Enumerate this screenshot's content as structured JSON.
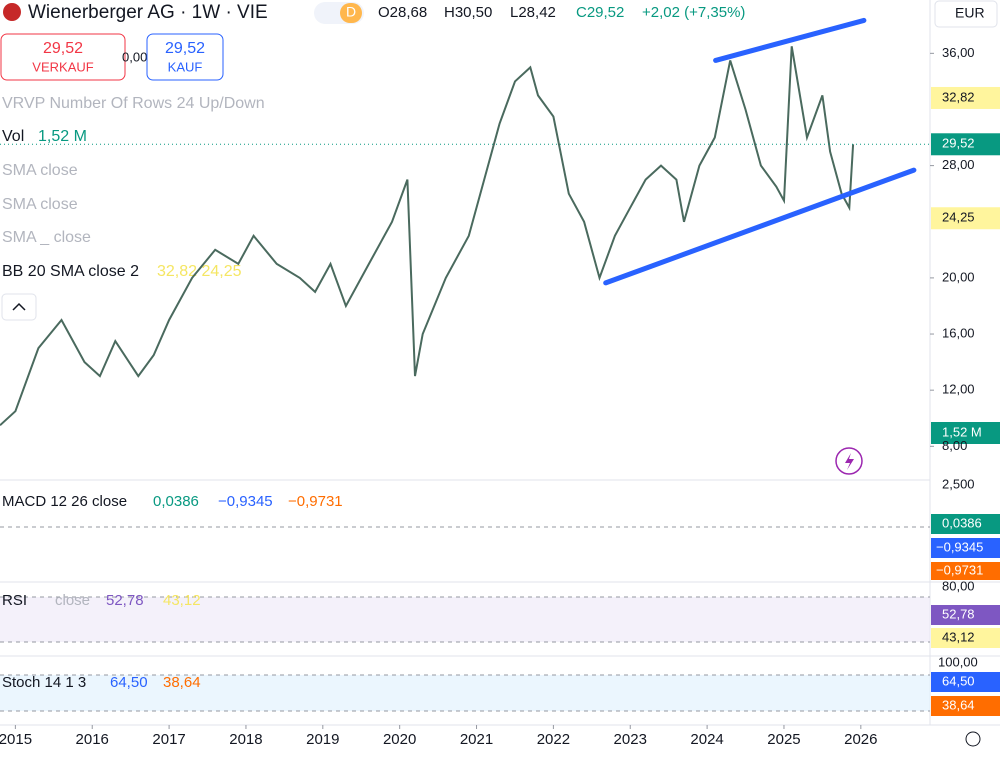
{
  "header": {
    "title": "Wienerberger AG · 1W · VIE",
    "badge": "D",
    "open": "O28,68",
    "high": "H30,50",
    "low": "L28,42",
    "close": "C29,52",
    "change": "+2,02 (+7,35%)",
    "currency": "EUR"
  },
  "trade": {
    "sell_price": "29,52",
    "sell_label": "VERKAUF",
    "spread": "0,00",
    "buy_price": "29,52",
    "buy_label": "KAUF"
  },
  "legend": {
    "vrvp": "VRVP Number Of Rows 24 Up/Down",
    "vol_name": "Vol",
    "vol_value": "1,52 M",
    "sma": [
      "SMA  close",
      "SMA   close",
      "SMA  _ close"
    ],
    "bb": "BB 20 SMA close 2",
    "bb_values": "32,82  24,25"
  },
  "price_chart": {
    "type": "line",
    "x": [
      2014.8,
      2015.0,
      2015.3,
      2015.6,
      2015.9,
      2016.1,
      2016.3,
      2016.6,
      2016.8,
      2017.0,
      2017.3,
      2017.6,
      2017.9,
      2018.1,
      2018.4,
      2018.7,
      2018.9,
      2019.1,
      2019.3,
      2019.6,
      2019.9,
      2020.1,
      2020.2,
      2020.3,
      2020.6,
      2020.9,
      2021.1,
      2021.3,
      2021.5,
      2021.7,
      2021.8,
      2022.0,
      2022.2,
      2022.4,
      2022.6,
      2022.8,
      2023.0,
      2023.2,
      2023.4,
      2023.6,
      2023.7,
      2023.9,
      2024.1,
      2024.3,
      2024.5,
      2024.7,
      2024.9,
      2025.0,
      2025.1,
      2025.3,
      2025.5,
      2025.6,
      2025.75,
      2025.85,
      2025.9
    ],
    "values": [
      9.5,
      10.5,
      15,
      17,
      14,
      13,
      15.5,
      13,
      14.5,
      17,
      20,
      22,
      21,
      23,
      21,
      20,
      19,
      21,
      18,
      21,
      24,
      27,
      13,
      16,
      20,
      23,
      27,
      31,
      34,
      35,
      33,
      31.5,
      26,
      24,
      20,
      23,
      25,
      27,
      28,
      27,
      24,
      28,
      30,
      35.5,
      32,
      28,
      26.5,
      25.5,
      36.5,
      30,
      33,
      29,
      26,
      25,
      29.52
    ],
    "color": "#4a6a5e",
    "xlim": [
      2014.8,
      2026.9
    ],
    "ylim": [
      5.6,
      39.8
    ],
    "xticks": [
      2015,
      2016,
      2017,
      2018,
      2019,
      2020,
      2021,
      2022,
      2023,
      2024,
      2025,
      2026
    ],
    "yticks": [
      {
        "value": 36,
        "label": "36,00"
      },
      {
        "value": 28,
        "label": "28,00"
      },
      {
        "value": 20,
        "label": "20,00"
      },
      {
        "value": 16,
        "label": "16,00"
      },
      {
        "value": 12,
        "label": "12,00"
      },
      {
        "value": 8,
        "label": "8,00"
      }
    ],
    "trendlines": [
      {
        "color": "#2962ff",
        "x": [
          2024.11,
          2026.04
        ],
        "values": [
          35.5,
          38.35
        ]
      },
      {
        "color": "#2962ff",
        "x": [
          2022.68,
          2026.69
        ],
        "values": [
          19.64,
          27.68
        ]
      }
    ],
    "price_labels": [
      {
        "value": 32.82,
        "label": "32,82",
        "color": "#fff59d"
      },
      {
        "value": 29.52,
        "label": "29,52",
        "color": "#089981"
      },
      {
        "value": 24.25,
        "label": "24,25",
        "color": "#fff59d"
      }
    ],
    "volume_label": "1,52 M"
  },
  "panes": {
    "macd": {
      "title": "MACD 12 26 close",
      "values": [
        "0,0386",
        "−0,9345",
        "−0,9731"
      ],
      "scale": "2,500",
      "labels": [
        "0,0386",
        "−0,9345",
        "−0,9731"
      ]
    },
    "rsi": {
      "title": "RSI",
      "sub": "close",
      "values": [
        "52,78",
        "43,12"
      ],
      "scale": "80,00",
      "labels": [
        "52,78",
        "43,12"
      ]
    },
    "stoch": {
      "title": "Stoch 14 1 3",
      "values": [
        "64,50",
        "38,64"
      ],
      "scale": "100,00",
      "labels": [
        "64,50",
        "38,64"
      ]
    }
  }
}
